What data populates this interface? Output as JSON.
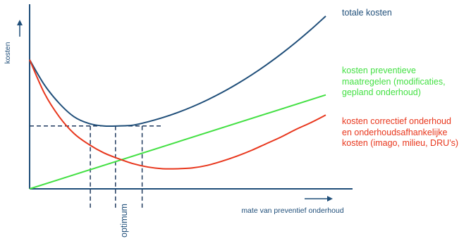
{
  "chart_data": {
    "type": "line",
    "ylabel": "kosten",
    "xlabel": "mate van preventief onderhoud",
    "optimum_label": "optimum",
    "xlim": [
      0,
      100
    ],
    "ylim": [
      0,
      100
    ],
    "grid": false,
    "optimum_x": 29,
    "optimum_band": [
      20.5,
      38
    ],
    "optimum_level": 37.5,
    "series": [
      {
        "name": "totale kosten",
        "label_lines": [
          "totale kosten"
        ],
        "color": "#1f4e79",
        "x": [
          0,
          5,
          10,
          15,
          20,
          25,
          30,
          35,
          40,
          45,
          50,
          55,
          60,
          65,
          70,
          75,
          80,
          85,
          90,
          95,
          100
        ],
        "y": [
          77,
          62,
          51,
          43,
          39,
          37.5,
          37.5,
          38,
          40,
          42.5,
          45.5,
          49,
          53,
          57.5,
          62.5,
          68,
          74,
          80.5,
          87.5,
          95,
          103
        ]
      },
      {
        "name": "kosten preventieve maatregelen (modificaties, gepland onderhoud)",
        "label_lines": [
          "kosten preventieve",
          "maatregelen (modificaties,",
          "gepland onderhoud)"
        ],
        "color": "#44e044",
        "x": [
          0,
          100
        ],
        "y": [
          0,
          56
        ]
      },
      {
        "name": "kosten correctief onderhoud en onderhoudsafhankelijke kosten (imago, milieu, DRU's)",
        "label_lines": [
          "kosten correctief onderhoud",
          "en onderhoudsafhankelijke",
          "kosten (imago, milieu, DRU’s)"
        ],
        "color": "#e8361c",
        "x": [
          0,
          5,
          10,
          15,
          20,
          25,
          30,
          35,
          40,
          45,
          50,
          55,
          60,
          65,
          70,
          75,
          80,
          85,
          90,
          95,
          100
        ],
        "y": [
          77,
          57,
          43,
          33,
          26.5,
          21.5,
          18,
          15,
          13,
          12,
          12,
          12.5,
          14,
          16.5,
          19.5,
          23,
          27,
          31,
          35.5,
          39.5,
          44
        ]
      }
    ]
  },
  "colors": {
    "axis": "#1f4e79",
    "dashed": "#1f3a5f",
    "axis_text": "#1f4e79"
  }
}
